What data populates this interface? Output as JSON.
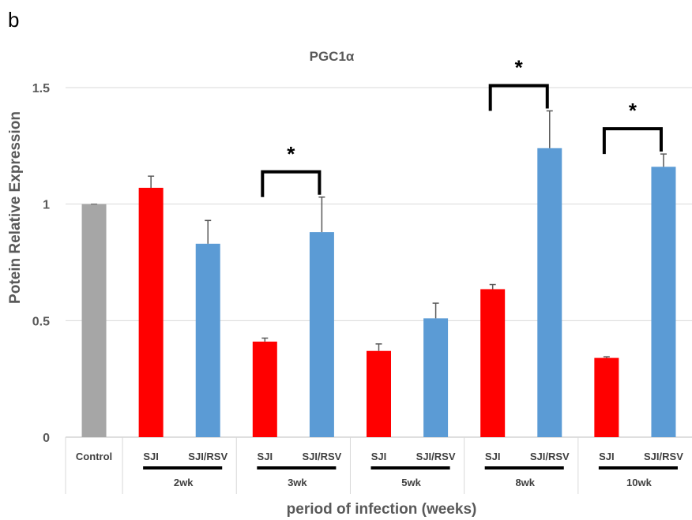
{
  "panel_label": "b",
  "chart_data": {
    "type": "bar",
    "title": "PGC1α",
    "xlabel": "period of infection (weeks)",
    "ylabel": "Potein Relative Expression",
    "ylim": [
      0,
      1.5
    ],
    "yticks": [
      "0",
      "0.5",
      "1",
      "1.5"
    ],
    "ytick_values": [
      0,
      0.5,
      1,
      1.5
    ],
    "grid": true,
    "colors": {
      "Control": "#a6a6a6",
      "SJI": "#ff0000",
      "SJI/RSV": "#5b9bd5"
    },
    "control": {
      "label": "Control",
      "value": 1.0,
      "error": 0.0
    },
    "groups": [
      {
        "label": "2wk",
        "bars": [
          {
            "label": "SJI",
            "value": 1.07,
            "error": 0.05
          },
          {
            "label": "SJI/RSV",
            "value": 0.83,
            "error": 0.1
          }
        ],
        "significant": false,
        "marker": ""
      },
      {
        "label": "3wk",
        "bars": [
          {
            "label": "SJI",
            "value": 0.41,
            "error": 0.015
          },
          {
            "label": "SJI/RSV",
            "value": 0.88,
            "error": 0.15
          }
        ],
        "significant": true,
        "marker": "*"
      },
      {
        "label": "5wk",
        "bars": [
          {
            "label": "SJI",
            "value": 0.37,
            "error": 0.03
          },
          {
            "label": "SJI/RSV",
            "value": 0.51,
            "error": 0.065
          }
        ],
        "significant": false,
        "marker": ""
      },
      {
        "label": "8wk",
        "bars": [
          {
            "label": "SJI",
            "value": 0.635,
            "error": 0.02
          },
          {
            "label": "SJI/RSV",
            "value": 1.24,
            "error": 0.16
          }
        ],
        "significant": true,
        "marker": "*"
      },
      {
        "label": "10wk",
        "bars": [
          {
            "label": "SJI",
            "value": 0.34,
            "error": 0.005
          },
          {
            "label": "SJI/RSV",
            "value": 1.16,
            "error": 0.055
          }
        ],
        "significant": true,
        "marker": "*"
      }
    ]
  }
}
